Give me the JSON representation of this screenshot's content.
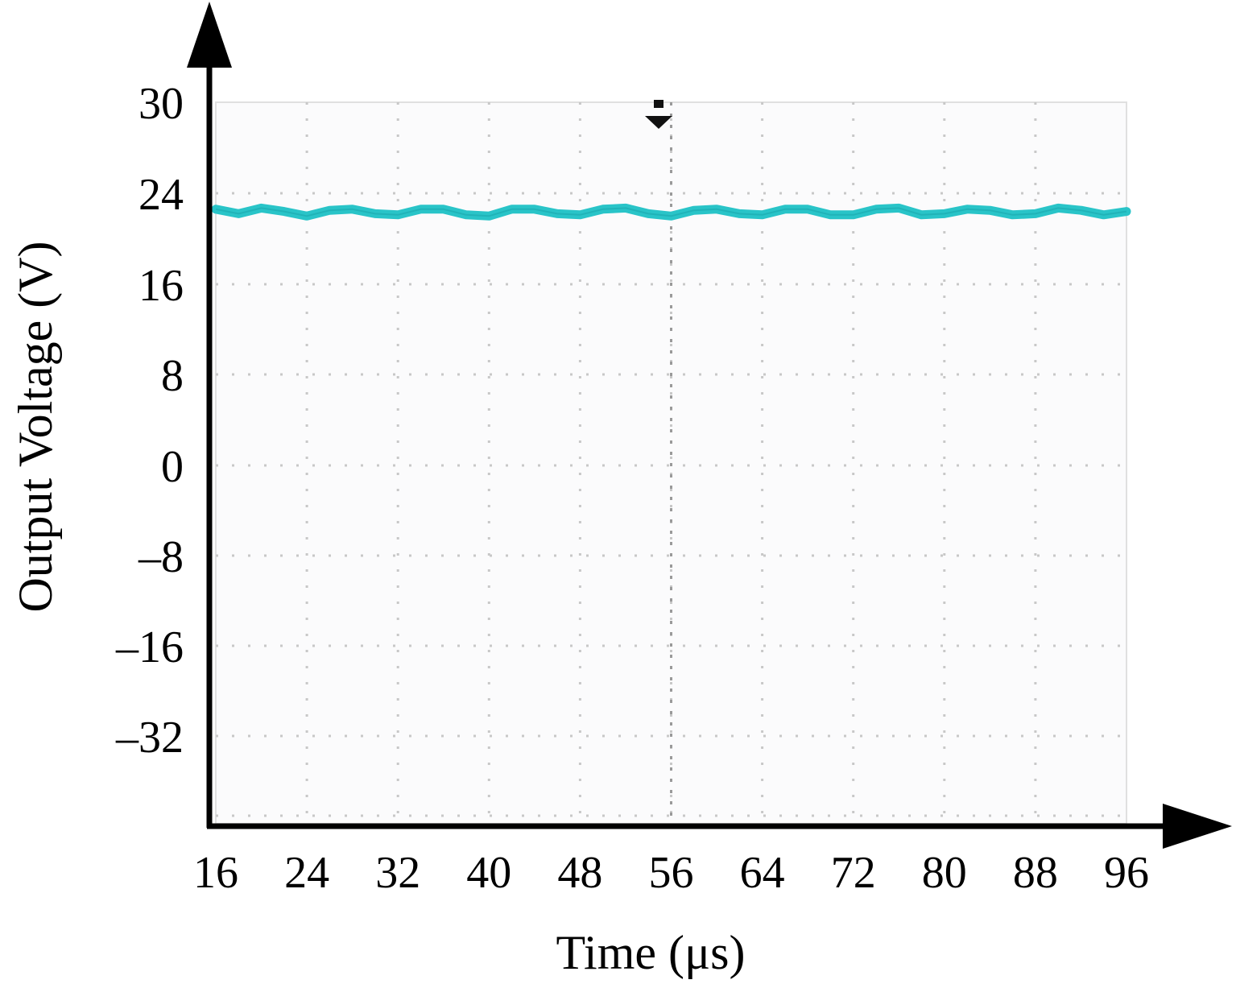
{
  "chart_data": {
    "type": "line",
    "xlabel": "Time (μs)",
    "ylabel": "Output Voltage (V)",
    "x_ticks": [
      "16",
      "24",
      "32",
      "40",
      "48",
      "56",
      "64",
      "72",
      "80",
      "88",
      "96"
    ],
    "y_ticks": [
      "30",
      "24",
      "16",
      "8",
      "0",
      "–8",
      "–16",
      "–32"
    ],
    "xlim": [
      16,
      96
    ],
    "grid": true,
    "grid_style": "dotted",
    "trigger_marker_x": 56,
    "series": [
      {
        "color": "#29c4c8",
        "x": [
          16,
          18,
          20,
          22,
          24,
          26,
          28,
          30,
          32,
          34,
          36,
          38,
          40,
          42,
          44,
          46,
          48,
          50,
          52,
          54,
          56,
          58,
          60,
          62,
          64,
          66,
          68,
          70,
          72,
          74,
          76,
          78,
          80,
          82,
          84,
          86,
          88,
          90,
          92,
          94,
          96
        ],
        "y": [
          22.6,
          22.2,
          22.7,
          22.4,
          22.0,
          22.5,
          22.6,
          22.2,
          22.1,
          22.6,
          22.6,
          22.1,
          22.0,
          22.6,
          22.6,
          22.2,
          22.1,
          22.6,
          22.7,
          22.2,
          22.0,
          22.5,
          22.6,
          22.2,
          22.1,
          22.6,
          22.6,
          22.1,
          22.1,
          22.6,
          22.7,
          22.1,
          22.2,
          22.6,
          22.5,
          22.1,
          22.2,
          22.7,
          22.5,
          22.1,
          22.4
        ]
      }
    ]
  }
}
